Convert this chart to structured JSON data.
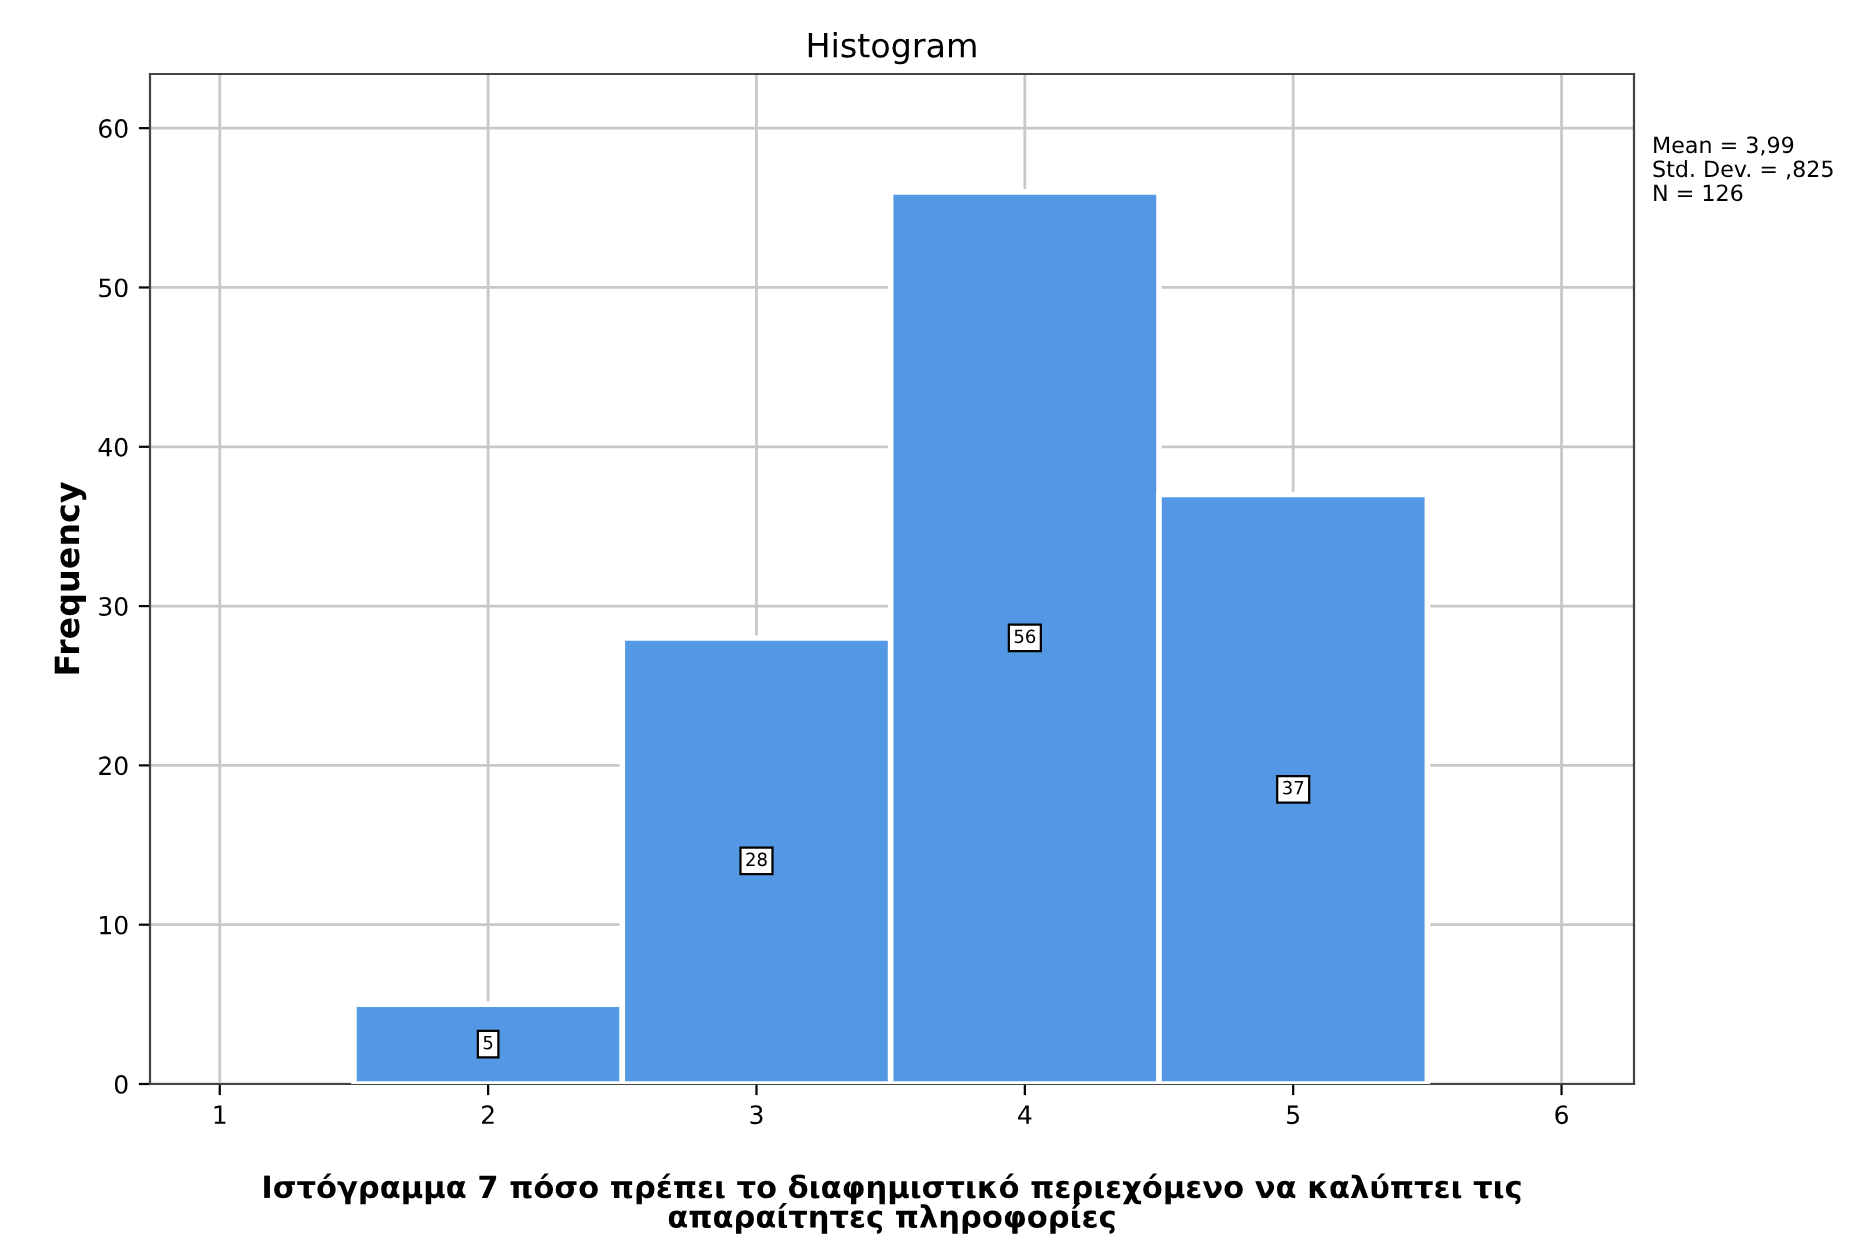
{
  "chart_data": {
    "type": "histogram",
    "title": "Histogram",
    "xlabel": "Ιστόγραμμα 7 πόσο πρέπει το διαφημιστικό περιεχόμενο να καλύπτει τις\nαπαραίτητες πληροφορίες",
    "ylabel": "Frequency",
    "bins": [
      1.5,
      2.5,
      3.5,
      4.5,
      5.5
    ],
    "values": [
      5,
      28,
      56,
      37
    ],
    "color": "#5497e4",
    "data_labels": true,
    "xlim": [
      0.74,
      6.27
    ],
    "xticks": [
      1,
      2,
      3,
      4,
      5,
      6
    ],
    "ylim": [
      0,
      63.4
    ],
    "yticks": [
      0,
      10,
      20,
      30,
      40,
      50,
      60
    ],
    "grid": true,
    "annotations": [
      "Mean = 3,99",
      "Std. Dev. = ,825",
      "N = 126"
    ]
  }
}
